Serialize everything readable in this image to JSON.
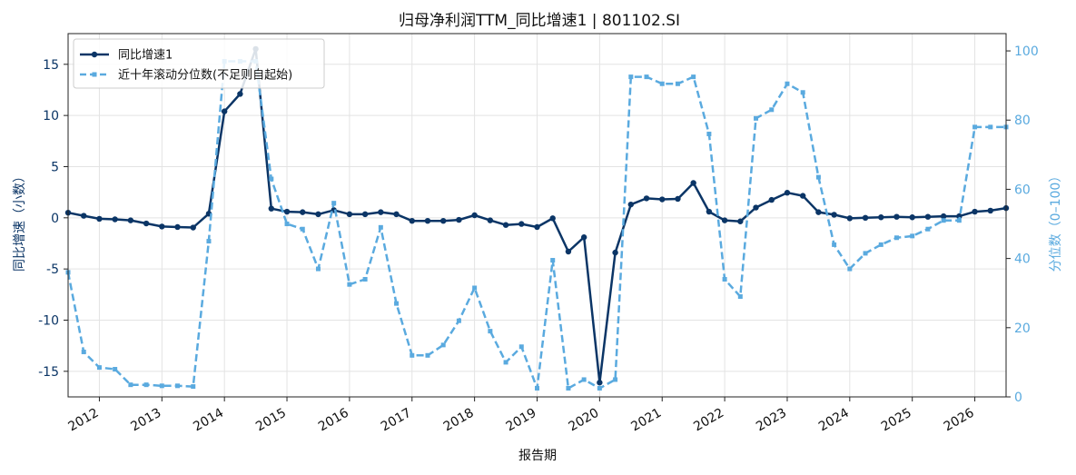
{
  "chart_data": {
    "type": "line",
    "title": "归母净利润TTM_同比增速1 | 801102.SI",
    "xlabel": "报告期",
    "ylabel_left": "同比增速（小数）",
    "ylabel_right": "分位数（0–100）",
    "ylim_left": [
      -17.5,
      18.0
    ],
    "ylim_right": [
      0,
      105
    ],
    "xlim": [
      2011.5,
      2026.5
    ],
    "yticks_left": [
      -15,
      -10,
      -5,
      0,
      5,
      10,
      15
    ],
    "yticks_right": [
      0,
      20,
      40,
      60,
      80,
      100
    ],
    "xticks": [
      2012,
      2013,
      2014,
      2015,
      2016,
      2017,
      2018,
      2019,
      2020,
      2021,
      2022,
      2023,
      2024,
      2025,
      2026
    ],
    "grid": true,
    "legend_position": "top-left",
    "colors": {
      "growth": "#0b3566",
      "percentile": "#5aaadf",
      "right_axis": "#5aaadf"
    },
    "series": [
      {
        "name": "同比增速1",
        "axis": "left",
        "style": "solid",
        "x": [
          2011.5,
          2011.75,
          2012.0,
          2012.25,
          2012.5,
          2012.75,
          2013.0,
          2013.25,
          2013.5,
          2013.75,
          2014.0,
          2014.25,
          2014.5,
          2014.75,
          2015.0,
          2015.25,
          2015.5,
          2015.75,
          2016.0,
          2016.25,
          2016.5,
          2016.75,
          2017.0,
          2017.25,
          2017.5,
          2017.75,
          2018.0,
          2018.25,
          2018.5,
          2018.75,
          2019.0,
          2019.25,
          2019.5,
          2019.75,
          2020.0,
          2020.25,
          2020.5,
          2020.75,
          2021.0,
          2021.25,
          2021.5,
          2021.75,
          2022.0,
          2022.25,
          2022.5,
          2022.75,
          2023.0,
          2023.25,
          2023.5,
          2023.75,
          2024.0,
          2024.25,
          2024.5,
          2024.75,
          2025.0,
          2025.25,
          2025.5,
          2025.75,
          2026.0,
          2026.25,
          2026.5
        ],
        "values": [
          0.5,
          0.2,
          -0.1,
          -0.15,
          -0.25,
          -0.55,
          -0.85,
          -0.9,
          -0.95,
          0.4,
          10.4,
          12.1,
          16.5,
          0.9,
          0.6,
          0.55,
          0.35,
          0.75,
          0.35,
          0.35,
          0.55,
          0.35,
          -0.3,
          -0.3,
          -0.3,
          -0.2,
          0.25,
          -0.25,
          -0.7,
          -0.6,
          -0.9,
          -0.05,
          -3.3,
          -1.9,
          -16.1,
          -3.4,
          1.3,
          1.9,
          1.8,
          1.85,
          3.4,
          0.6,
          -0.25,
          -0.35,
          1.0,
          1.75,
          2.45,
          2.15,
          0.55,
          0.3,
          -0.05,
          0.0,
          0.05,
          0.1,
          0.05,
          0.1,
          0.15,
          0.15,
          0.6,
          0.7,
          0.95
        ]
      },
      {
        "name": "近十年滚动分位数(不足则自起始)",
        "axis": "right",
        "style": "dashed",
        "x": [
          2011.5,
          2011.75,
          2012.0,
          2012.25,
          2012.5,
          2012.75,
          2013.0,
          2013.25,
          2013.5,
          2013.75,
          2014.0,
          2014.25,
          2014.5,
          2014.75,
          2015.0,
          2015.25,
          2015.5,
          2015.75,
          2016.0,
          2016.25,
          2016.5,
          2016.75,
          2017.0,
          2017.25,
          2017.5,
          2017.75,
          2018.0,
          2018.25,
          2018.5,
          2018.75,
          2019.0,
          2019.25,
          2019.5,
          2019.75,
          2020.0,
          2020.25,
          2020.5,
          2020.75,
          2021.0,
          2021.25,
          2021.5,
          2021.75,
          2022.0,
          2022.25,
          2022.5,
          2022.75,
          2023.0,
          2023.25,
          2023.5,
          2023.75,
          2024.0,
          2024.25,
          2024.5,
          2024.75,
          2025.0,
          2025.25,
          2025.5,
          2025.75,
          2026.0,
          2026.25,
          2026.5
        ],
        "values": [
          36,
          13,
          8.5,
          8,
          3.5,
          3.5,
          3.2,
          3.2,
          3,
          45,
          97,
          97,
          97,
          63,
          50,
          48.5,
          37,
          56,
          32.5,
          34,
          49,
          27,
          12,
          12,
          15,
          22,
          31.5,
          19,
          10,
          14.5,
          2.5,
          39.5,
          2.5,
          5,
          2.5,
          5,
          92.5,
          92.5,
          90.5,
          90.5,
          92.5,
          76,
          34,
          29,
          80.5,
          83,
          90.5,
          88,
          63.5,
          44,
          37,
          41.5,
          44,
          46,
          46.5,
          48.5,
          51,
          51,
          78,
          78,
          78
        ]
      }
    ]
  }
}
